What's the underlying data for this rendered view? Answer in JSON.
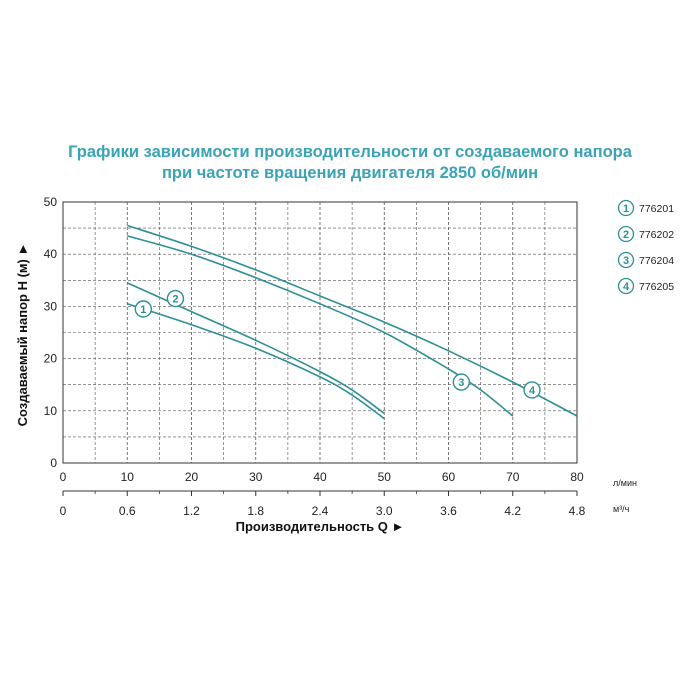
{
  "title": {
    "line1": "Графики зависимости производительности от создаваемого напора",
    "line2": "при частоте вращения двигателя 2850 об/мин"
  },
  "colors": {
    "accent": "#3aa3b4",
    "curve": "#2e8f96",
    "grid": "#555555",
    "text": "#222222"
  },
  "chart_data": {
    "type": "line",
    "title": "Графики зависимости производительности от создаваемого напора при частоте вращения двигателя 2850 об/мин",
    "ylabel": "Создаваемый напор H (м) ►",
    "xlabel": "Производительность Q ►",
    "xlim": [
      0,
      80
    ],
    "ylim": [
      0,
      50
    ],
    "x_unit": "л/мин",
    "x2_unit": "м³/ч",
    "x_ticks": [
      0,
      10,
      20,
      30,
      40,
      50,
      60,
      70,
      80
    ],
    "x2_ticks": [
      {
        "label": "0",
        "q": 0
      },
      {
        "label": "0.6",
        "q": 10
      },
      {
        "label": "1.2",
        "q": 20
      },
      {
        "label": "1.8",
        "q": 30
      },
      {
        "label": "2.4",
        "q": 40
      },
      {
        "label": "3.0",
        "q": 50
      },
      {
        "label": "3.6",
        "q": 60
      },
      {
        "label": "4.2",
        "q": 70
      },
      {
        "label": "4.8",
        "q": 80
      }
    ],
    "y_ticks": [
      0,
      10,
      20,
      30,
      40,
      50
    ],
    "grid": true,
    "legend_position": "right",
    "series": [
      {
        "name": "776201",
        "marker": "1",
        "marker_at": [
          12.5,
          29.5
        ],
        "points": [
          [
            10,
            30.5
          ],
          [
            20,
            26.5
          ],
          [
            30,
            22
          ],
          [
            40,
            16.5
          ],
          [
            45,
            13
          ],
          [
            50,
            8.5
          ]
        ]
      },
      {
        "name": "776202",
        "marker": "2",
        "marker_at": [
          17.5,
          31.5
        ],
        "points": [
          [
            10,
            34.5
          ],
          [
            20,
            29
          ],
          [
            30,
            23.5
          ],
          [
            40,
            17.5
          ],
          [
            45,
            14
          ],
          [
            50,
            9.5
          ]
        ]
      },
      {
        "name": "776204",
        "marker": "3",
        "marker_at": [
          62,
          15.5
        ],
        "points": [
          [
            10,
            43.5
          ],
          [
            20,
            40
          ],
          [
            30,
            35.5
          ],
          [
            40,
            30.5
          ],
          [
            50,
            25
          ],
          [
            60,
            18
          ],
          [
            65,
            14
          ],
          [
            70,
            9
          ]
        ]
      },
      {
        "name": "776205",
        "marker": "4",
        "marker_at": [
          73,
          14
        ],
        "points": [
          [
            10,
            45.5
          ],
          [
            20,
            41.5
          ],
          [
            30,
            37
          ],
          [
            40,
            32
          ],
          [
            50,
            27
          ],
          [
            60,
            21.5
          ],
          [
            70,
            15.5
          ],
          [
            80,
            9
          ]
        ]
      }
    ]
  }
}
